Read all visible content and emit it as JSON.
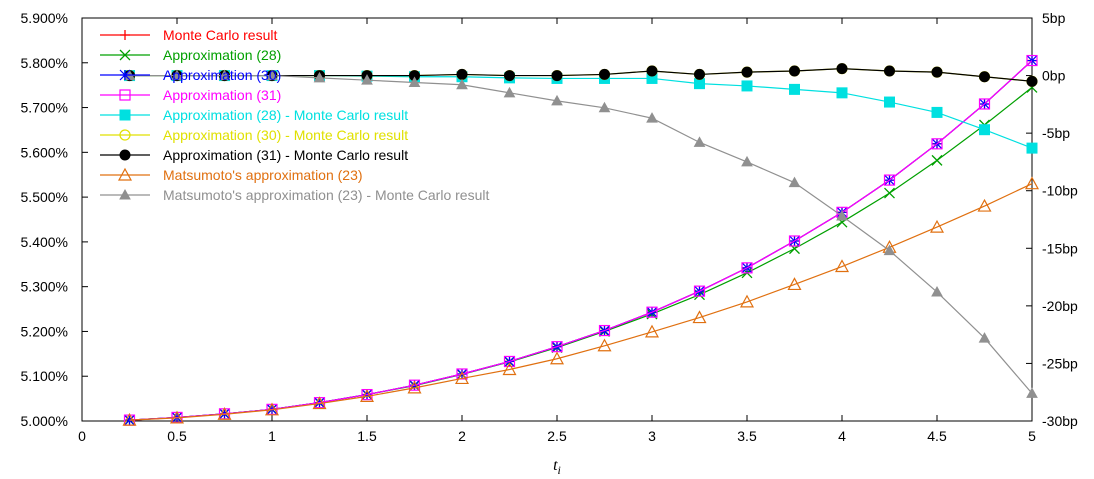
{
  "chart_data": {
    "type": "line",
    "xlabel": "t",
    "xlabel_sub": "i",
    "x_ticks": [
      "0",
      "0.5",
      "1",
      "1.5",
      "2",
      "2.5",
      "3",
      "3.5",
      "4",
      "4.5",
      "5"
    ],
    "xlim": [
      0,
      5
    ],
    "y_left_ticks": [
      "5.000%",
      "5.100%",
      "5.200%",
      "5.300%",
      "5.400%",
      "5.500%",
      "5.600%",
      "5.700%",
      "5.800%",
      "5.900%"
    ],
    "ylim_left": [
      5.0,
      5.9
    ],
    "y_right_ticks": [
      "-30bp",
      "-25bp",
      "-20bp",
      "-15bp",
      "-10bp",
      "-5bp",
      "0bp",
      "5bp"
    ],
    "ylim_right": [
      -30,
      5
    ],
    "grid": false,
    "legend_position": "top-left",
    "x": [
      0.25,
      0.5,
      0.75,
      1.0,
      1.25,
      1.5,
      1.75,
      2.0,
      2.25,
      2.5,
      2.75,
      3.0,
      3.25,
      3.5,
      3.75,
      4.0,
      4.25,
      4.5,
      4.75,
      5.0
    ],
    "series": [
      {
        "name": "Monte Carlo result",
        "axis": "left",
        "color": "#ff0000",
        "marker": "plus",
        "values": [
          5.002,
          5.008,
          5.016,
          5.026,
          5.041,
          5.059,
          5.08,
          5.105,
          5.133,
          5.166,
          5.202,
          5.243,
          5.29,
          5.342,
          5.402,
          5.466,
          5.538,
          5.619,
          5.708,
          5.805
        ]
      },
      {
        "name": "Approximation (28)",
        "axis": "left",
        "color": "#00a000",
        "marker": "x",
        "values": [
          5.002,
          5.008,
          5.016,
          5.026,
          5.041,
          5.059,
          5.079,
          5.104,
          5.132,
          5.164,
          5.2,
          5.239,
          5.282,
          5.331,
          5.385,
          5.444,
          5.509,
          5.582,
          5.661,
          5.745
        ]
      },
      {
        "name": "Approximation (30)",
        "axis": "left",
        "color": "#0000ff",
        "marker": "star",
        "values": [
          5.002,
          5.008,
          5.016,
          5.026,
          5.041,
          5.059,
          5.08,
          5.105,
          5.133,
          5.166,
          5.202,
          5.243,
          5.29,
          5.342,
          5.402,
          5.466,
          5.538,
          5.619,
          5.708,
          5.805
        ]
      },
      {
        "name": "Approximation (31)",
        "axis": "left",
        "color": "#ff00ff",
        "marker": "open-square",
        "values": [
          5.002,
          5.008,
          5.016,
          5.026,
          5.041,
          5.059,
          5.08,
          5.105,
          5.133,
          5.166,
          5.202,
          5.243,
          5.29,
          5.342,
          5.402,
          5.466,
          5.538,
          5.619,
          5.708,
          5.805
        ]
      },
      {
        "name": "Approximation (28) - Monte Carlo result",
        "axis": "right",
        "color": "#00e0e0",
        "marker": "filled-square",
        "values": [
          0,
          0,
          0,
          0,
          0,
          -0.05,
          -0.1,
          -0.1,
          -0.2,
          -0.25,
          -0.25,
          -0.25,
          -0.7,
          -0.9,
          -1.2,
          -1.5,
          -2.3,
          -3.2,
          -4.7,
          -6.3
        ]
      },
      {
        "name": "Approximation (30) - Monte Carlo result",
        "axis": "right",
        "color": "#e0e000",
        "marker": "open-circle",
        "values": [
          0,
          0,
          0,
          0,
          0,
          0,
          0,
          0.1,
          0,
          0,
          0.1,
          0.4,
          0.1,
          0.3,
          0.4,
          0.6,
          0.4,
          0.3,
          -0.1,
          -0.5
        ]
      },
      {
        "name": "Approximation (31) - Monte Carlo result",
        "axis": "right",
        "color": "#000000",
        "marker": "filled-circle",
        "values": [
          0,
          0,
          0,
          0,
          0,
          0,
          0,
          0.1,
          0,
          0,
          0.1,
          0.4,
          0.1,
          0.3,
          0.4,
          0.6,
          0.4,
          0.3,
          -0.1,
          -0.5
        ]
      },
      {
        "name": "Matsumoto's approximation (23)",
        "axis": "left",
        "color": "#e07010",
        "marker": "open-triangle",
        "values": [
          5.002,
          5.007,
          5.015,
          5.025,
          5.039,
          5.055,
          5.074,
          5.095,
          5.115,
          5.139,
          5.168,
          5.199,
          5.231,
          5.266,
          5.305,
          5.345,
          5.388,
          5.433,
          5.48,
          5.53
        ]
      },
      {
        "name": "Matsumoto's approximation (23) - Monte Carlo result",
        "axis": "right",
        "color": "#909090",
        "marker": "filled-triangle",
        "values": [
          0,
          0,
          0,
          0,
          -0.2,
          -0.4,
          -0.6,
          -0.8,
          -1.5,
          -2.2,
          -2.8,
          -3.7,
          -5.8,
          -7.5,
          -9.3,
          -12.2,
          -15.2,
          -18.8,
          -22.8,
          -27.6
        ]
      }
    ]
  }
}
